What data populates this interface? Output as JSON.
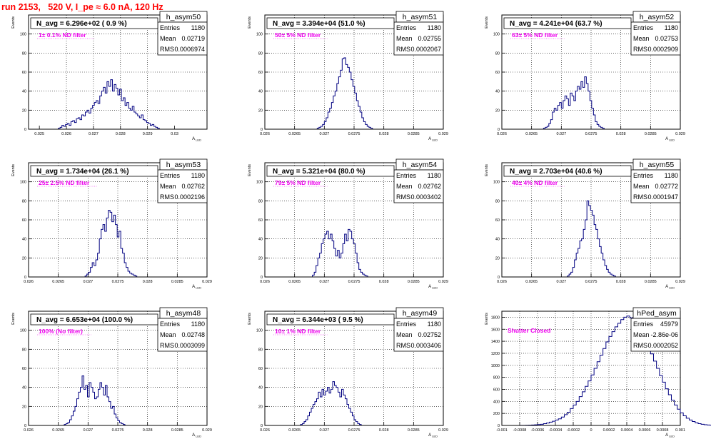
{
  "run_title": "run 2153,   520 V, I_pe ≈ 6.0 nA, 120 Hz",
  "chart_data": [
    {
      "type": "histogram",
      "name": "h_asym50",
      "n_avg": "N_avg = 6.296e+02 ( 0.9 %)",
      "filter_label": "1± 0.1% ND filter",
      "stats": {
        "entries_label": "Entries",
        "entries": "1180",
        "mean_label": "Mean",
        "mean": "0.02719",
        "rms_label": "RMS",
        "rms": "0.0006974"
      },
      "xlabel": "A_LED",
      "ylabel": "Events",
      "xlim": [
        0.0246,
        0.0312
      ],
      "ylim": [
        0,
        120
      ],
      "xticks": [
        "0.025",
        "0.026",
        "0.027",
        "0.028",
        "0.029",
        "0.03"
      ],
      "yticks": [
        "20",
        "40",
        "60",
        "80",
        "100"
      ],
      "bins": {
        "start": 0.0257,
        "width": 6.67e-05,
        "values": [
          1,
          2,
          4,
          3,
          5,
          6,
          4,
          8,
          9,
          7,
          11,
          12,
          10,
          15,
          14,
          18,
          20,
          17,
          22,
          25,
          28,
          30,
          27,
          35,
          40,
          44,
          38,
          50,
          45,
          52,
          40,
          47,
          43,
          36,
          42,
          30,
          33,
          25,
          28,
          22,
          20,
          24,
          18,
          16,
          14,
          12,
          15,
          10,
          9,
          7,
          6,
          4,
          5,
          3,
          2,
          1
        ]
      }
    },
    {
      "type": "histogram",
      "name": "h_asym51",
      "n_avg": "N_avg = 3.394e+04 (51.0 %)",
      "filter_label": "50± 5% ND filter",
      "stats": {
        "entries_label": "Entries",
        "entries": "1180",
        "mean_label": "Mean",
        "mean": "0.02755",
        "rms_label": "RMS",
        "rms": "0.0002067"
      },
      "xlabel": "A_LED",
      "ylabel": "Events",
      "xlim": [
        0.026,
        0.029
      ],
      "ylim": [
        0,
        120
      ],
      "xticks": [
        "0.026",
        "0.0265",
        "0.027",
        "0.0275",
        "0.028",
        "0.0285",
        "0.029"
      ],
      "yticks": [
        "20",
        "40",
        "60",
        "80",
        "100"
      ],
      "bins": {
        "start": 0.02688,
        "width": 3e-05,
        "values": [
          1,
          2,
          3,
          5,
          8,
          12,
          18,
          22,
          28,
          35,
          40,
          48,
          55,
          62,
          74,
          75,
          68,
          65,
          60,
          52,
          45,
          38,
          30,
          24,
          18,
          12,
          8,
          5,
          3,
          2,
          1
        ]
      }
    },
    {
      "type": "histogram",
      "name": "h_asym52",
      "n_avg": "N_avg = 4.241e+04 (63.7 %)",
      "filter_label": "63± 5% ND filter",
      "stats": {
        "entries_label": "Entries",
        "entries": "1180",
        "mean_label": "Mean",
        "mean": "0.02753",
        "rms_label": "RMS",
        "rms": "0.0002909"
      },
      "xlabel": "A_LED",
      "ylabel": "Events",
      "xlim": [
        0.026,
        0.029
      ],
      "ylim": [
        0,
        120
      ],
      "xticks": [
        "0.026",
        "0.0265",
        "0.027",
        "0.0275",
        "0.028",
        "0.0285",
        "0.029"
      ],
      "yticks": [
        "20",
        "40",
        "60",
        "80",
        "100"
      ],
      "bins": {
        "start": 0.0267,
        "width": 3e-05,
        "values": [
          1,
          2,
          3,
          6,
          10,
          18,
          22,
          20,
          25,
          28,
          22,
          30,
          35,
          32,
          25,
          38,
          35,
          30,
          40,
          45,
          42,
          50,
          44,
          55,
          48,
          40,
          30,
          22,
          15,
          8,
          5,
          3,
          2,
          1
        ]
      }
    },
    {
      "type": "histogram",
      "name": "h_asym53",
      "n_avg": "N_avg = 1.734e+04 (26.1 %)",
      "filter_label": "25± 2.5% ND filter",
      "stats": {
        "entries_label": "Entries",
        "entries": "1180",
        "mean_label": "Mean",
        "mean": "0.02762",
        "rms_label": "RMS",
        "rms": "0.0002196"
      },
      "xlabel": "A_LED",
      "ylabel": "Events",
      "xlim": [
        0.026,
        0.029
      ],
      "ylim": [
        0,
        120
      ],
      "xticks": [
        "0.026",
        "0.0265",
        "0.027",
        "0.0275",
        "0.028",
        "0.0285",
        "0.029"
      ],
      "yticks": [
        "20",
        "40",
        "60",
        "80",
        "100"
      ],
      "bins": {
        "start": 0.02695,
        "width": 3e-05,
        "values": [
          1,
          3,
          5,
          10,
          15,
          12,
          18,
          25,
          40,
          50,
          55,
          48,
          62,
          70,
          68,
          58,
          65,
          55,
          42,
          48,
          30,
          25,
          15,
          10,
          6,
          4,
          3,
          2,
          1
        ]
      }
    },
    {
      "type": "histogram",
      "name": "h_asym54",
      "n_avg": "N_avg = 5.321e+04 (80.0 %)",
      "filter_label": "79± 5% ND filter",
      "stats": {
        "entries_label": "Entries",
        "entries": "1180",
        "mean_label": "Mean",
        "mean": "0.02762",
        "rms_label": "RMS",
        "rms": "0.0003402"
      },
      "xlabel": "A_LED",
      "ylabel": "Events",
      "xlim": [
        0.026,
        0.029
      ],
      "ylim": [
        0,
        120
      ],
      "xticks": [
        "0.026",
        "0.0265",
        "0.027",
        "0.0275",
        "0.028",
        "0.0285",
        "0.029"
      ],
      "yticks": [
        "20",
        "40",
        "60",
        "80",
        "100"
      ],
      "bins": {
        "start": 0.0268,
        "width": 3e-05,
        "values": [
          2,
          5,
          12,
          20,
          25,
          35,
          40,
          45,
          48,
          40,
          45,
          38,
          30,
          22,
          28,
          20,
          25,
          35,
          45,
          38,
          50,
          48,
          40,
          35,
          25,
          15,
          8,
          5,
          3,
          2,
          1
        ]
      }
    },
    {
      "type": "histogram",
      "name": "h_asym55",
      "n_avg": "N_avg = 2.703e+04 (40.6 %)",
      "filter_label": "40± 4% ND filter",
      "stats": {
        "entries_label": "Entries",
        "entries": "1180",
        "mean_label": "Mean",
        "mean": "0.02772",
        "rms_label": "RMS",
        "rms": "0.0001947"
      },
      "xlabel": "A_LED",
      "ylabel": "Events",
      "xlim": [
        0.026,
        0.029
      ],
      "ylim": [
        0,
        120
      ],
      "xticks": [
        "0.026",
        "0.0265",
        "0.027",
        "0.0275",
        "0.028",
        "0.0285",
        "0.029"
      ],
      "yticks": [
        "20",
        "40",
        "60",
        "80",
        "100"
      ],
      "bins": {
        "start": 0.0271,
        "width": 3e-05,
        "values": [
          1,
          3,
          5,
          10,
          18,
          25,
          30,
          38,
          40,
          50,
          60,
          80,
          75,
          70,
          65,
          55,
          50,
          40,
          32,
          25,
          18,
          12,
          8,
          5,
          3,
          2,
          1
        ]
      }
    },
    {
      "type": "histogram",
      "name": "h_asym48",
      "n_avg": "N_avg = 6.653e+04 (100.0 %)",
      "filter_label": "100% (No filter)",
      "stats": {
        "entries_label": "Entries",
        "entries": "1180",
        "mean_label": "Mean",
        "mean": "0.02748",
        "rms_label": "RMS",
        "rms": "0.0003099"
      },
      "xlabel": "A_LED",
      "ylabel": "Events",
      "xlim": [
        0.026,
        0.029
      ],
      "ylim": [
        0,
        120
      ],
      "xticks": [
        "0.026",
        "0.0265",
        "0.027",
        "0.0275",
        "0.028",
        "0.0285",
        "0.029"
      ],
      "yticks": [
        "20",
        "40",
        "60",
        "80",
        "100"
      ],
      "bins": {
        "start": 0.0266,
        "width": 3e-05,
        "values": [
          1,
          2,
          3,
          6,
          10,
          15,
          20,
          28,
          35,
          40,
          52,
          38,
          42,
          30,
          45,
          40,
          35,
          28,
          30,
          38,
          45,
          40,
          32,
          42,
          30,
          25,
          18,
          20,
          12,
          8,
          5,
          3,
          2,
          1
        ]
      }
    },
    {
      "type": "histogram",
      "name": "h_asym49",
      "n_avg": "N_avg = 6.344e+03 ( 9.5 %)",
      "filter_label": "10± 1% ND filter",
      "stats": {
        "entries_label": "Entries",
        "entries": "1180",
        "mean_label": "Mean",
        "mean": "0.02752",
        "rms_label": "RMS",
        "rms": "0.0003406"
      },
      "xlabel": "A_LED",
      "ylabel": "Events",
      "xlim": [
        0.026,
        0.029
      ],
      "ylim": [
        0,
        120
      ],
      "xticks": [
        "0.026",
        "0.0265",
        "0.027",
        "0.0275",
        "0.028",
        "0.0285",
        "0.029"
      ],
      "yticks": [
        "20",
        "40",
        "60",
        "80",
        "100"
      ],
      "bins": {
        "start": 0.0266,
        "width": 3e-05,
        "values": [
          1,
          2,
          4,
          6,
          10,
          14,
          18,
          22,
          25,
          28,
          35,
          30,
          38,
          32,
          36,
          40,
          34,
          38,
          46,
          42,
          40,
          35,
          30,
          38,
          32,
          28,
          22,
          18,
          14,
          10,
          6,
          4,
          2,
          1
        ]
      }
    },
    {
      "type": "histogram",
      "name": "hPed_asym",
      "n_avg": "",
      "filter_label": "Shutter Closed",
      "stats": {
        "entries_label": "Entries",
        "entries": "45979",
        "mean_label": "Mean",
        "mean": "-2.86e-06",
        "rms_label": "RMS",
        "rms": "0.0002052"
      },
      "xlabel": "A_LED",
      "ylabel": "Events",
      "xlim": [
        -0.001,
        0.001
      ],
      "ylim": [
        0,
        1900
      ],
      "xticks": [
        "-0.001",
        "-0.0008",
        "-0.0006",
        "-0.0004",
        "-0.0002",
        "0",
        "0.0002",
        "0.0004",
        "0.0006",
        "0.0008",
        "0.001"
      ],
      "yticks": [
        "200",
        "400",
        "600",
        "800",
        "1000",
        "1200",
        "1400",
        "1600",
        "1800"
      ],
      "bins": {
        "start": -0.0008,
        "width": 3.333e-05,
        "values": [
          1,
          2,
          3,
          5,
          8,
          10,
          15,
          20,
          30,
          40,
          55,
          70,
          90,
          110,
          140,
          180,
          220,
          280,
          340,
          400,
          480,
          560,
          650,
          740,
          840,
          950,
          1060,
          1170,
          1280,
          1390,
          1480,
          1560,
          1640,
          1700,
          1760,
          1800,
          1820,
          1790,
          1760,
          1700,
          1620,
          1530,
          1420,
          1310,
          1190,
          1070,
          950,
          830,
          720,
          610,
          510,
          420,
          340,
          270,
          210,
          160,
          120,
          90,
          65,
          45,
          30,
          20,
          12,
          8,
          5,
          3,
          2,
          1
        ]
      }
    }
  ]
}
